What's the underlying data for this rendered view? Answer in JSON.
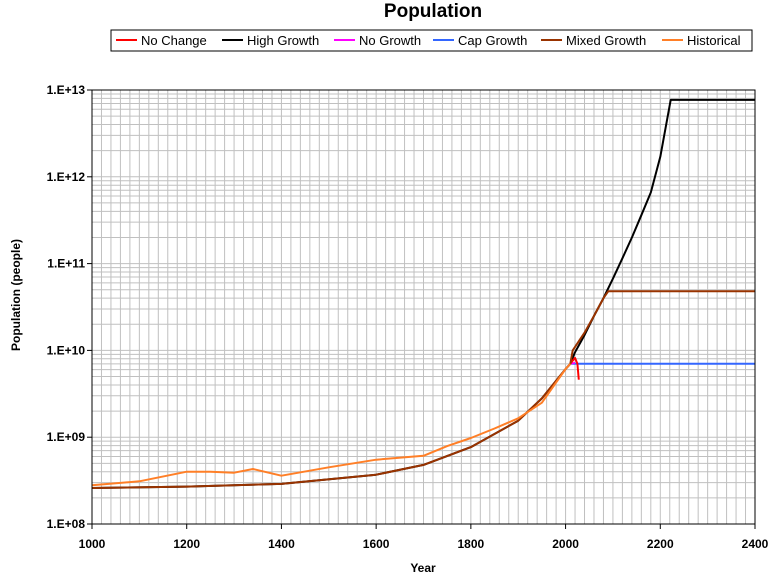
{
  "chart_data": {
    "type": "line",
    "title": "Population",
    "xlabel": "Year",
    "ylabel": "Population (people)",
    "xlim": [
      1000,
      2400
    ],
    "ylim": [
      100000000.0,
      10000000000000.0
    ],
    "yscale": "log",
    "grid": true,
    "legend_position": "top",
    "x_ticks": [
      1000,
      1200,
      1400,
      1600,
      1800,
      2000,
      2200,
      2400
    ],
    "x_tick_labels": [
      "1000",
      "1200",
      "1400",
      "1600",
      "1800",
      "2000",
      "2200",
      "2400"
    ],
    "y_ticks": [
      100000000.0,
      1000000000.0,
      10000000000.0,
      100000000000.0,
      1000000000000.0,
      10000000000000.0
    ],
    "y_tick_labels": [
      "1.E+08",
      "1.E+09",
      "1.E+10",
      "1.E+11",
      "1.E+12",
      "1.E+13"
    ],
    "series": [
      {
        "name": "No Change",
        "color": "#ff0000",
        "x": [
          2010,
          2015,
          2020,
          2025,
          2028
        ],
        "y": [
          7000000000.0,
          7600000000.0,
          8200000000.0,
          7000000000.0,
          4600000000.0
        ]
      },
      {
        "name": "High Growth",
        "color": "#000000",
        "x": [
          1000,
          1200,
          1400,
          1600,
          1700,
          1800,
          1900,
          1950,
          2000,
          2010,
          2020,
          2040,
          2060,
          2080,
          2100,
          2120,
          2140,
          2160,
          2180,
          2200,
          2222,
          2240,
          2300,
          2400
        ],
        "y": [
          260000000.0,
          270000000.0,
          290000000.0,
          370000000.0,
          480000000.0,
          770000000.0,
          1550000000.0,
          2800000000.0,
          6100000000.0,
          7000000000.0,
          9500000000.0,
          15000000000.0,
          25000000000.0,
          40000000000.0,
          67000000000.0,
          115000000000.0,
          200000000000.0,
          360000000000.0,
          660000000000.0,
          1700000000000.0,
          7700000000000.0,
          7700000000000.0,
          7700000000000.0,
          7700000000000.0
        ]
      },
      {
        "name": "No Growth",
        "color": "#ff00ff",
        "x": [
          2010,
          2020
        ],
        "y": [
          7000000000.0,
          7200000000.0
        ]
      },
      {
        "name": "Cap Growth",
        "color": "#3366ff",
        "x": [
          2010,
          2020,
          2030,
          2050,
          2100,
          2200,
          2300,
          2400
        ],
        "y": [
          7000000000.0,
          7000000000.0,
          7000000000.0,
          7000000000.0,
          7000000000.0,
          7000000000.0,
          7000000000.0,
          7000000000.0
        ]
      },
      {
        "name": "Mixed Growth",
        "color": "#993300",
        "x": [
          1000,
          1200,
          1400,
          1600,
          1700,
          1800,
          1900,
          1950,
          2000,
          2010,
          2015,
          2040,
          2060,
          2080,
          2090,
          2100,
          2200,
          2300,
          2400
        ],
        "y": [
          260000000.0,
          270000000.0,
          290000000.0,
          370000000.0,
          480000000.0,
          770000000.0,
          1550000000.0,
          2800000000.0,
          6100000000.0,
          7000000000.0,
          10000000000.0,
          16000000000.0,
          25000000000.0,
          40000000000.0,
          48000000000.0,
          48000000000.0,
          48000000000.0,
          48000000000.0,
          48000000000.0
        ]
      },
      {
        "name": "Historical",
        "color": "#ff7f27",
        "x": [
          1000,
          1100,
          1200,
          1250,
          1300,
          1340,
          1400,
          1500,
          1600,
          1700,
          1750,
          1800,
          1850,
          1900,
          1950,
          2000,
          2010
        ],
        "y": [
          280000000.0,
          310000000.0,
          400000000.0,
          400000000.0,
          390000000.0,
          430000000.0,
          360000000.0,
          450000000.0,
          550000000.0,
          610000000.0,
          790000000.0,
          980000000.0,
          1260000000.0,
          1650000000.0,
          2500000000.0,
          6100000000.0,
          7000000000.0
        ]
      }
    ]
  }
}
